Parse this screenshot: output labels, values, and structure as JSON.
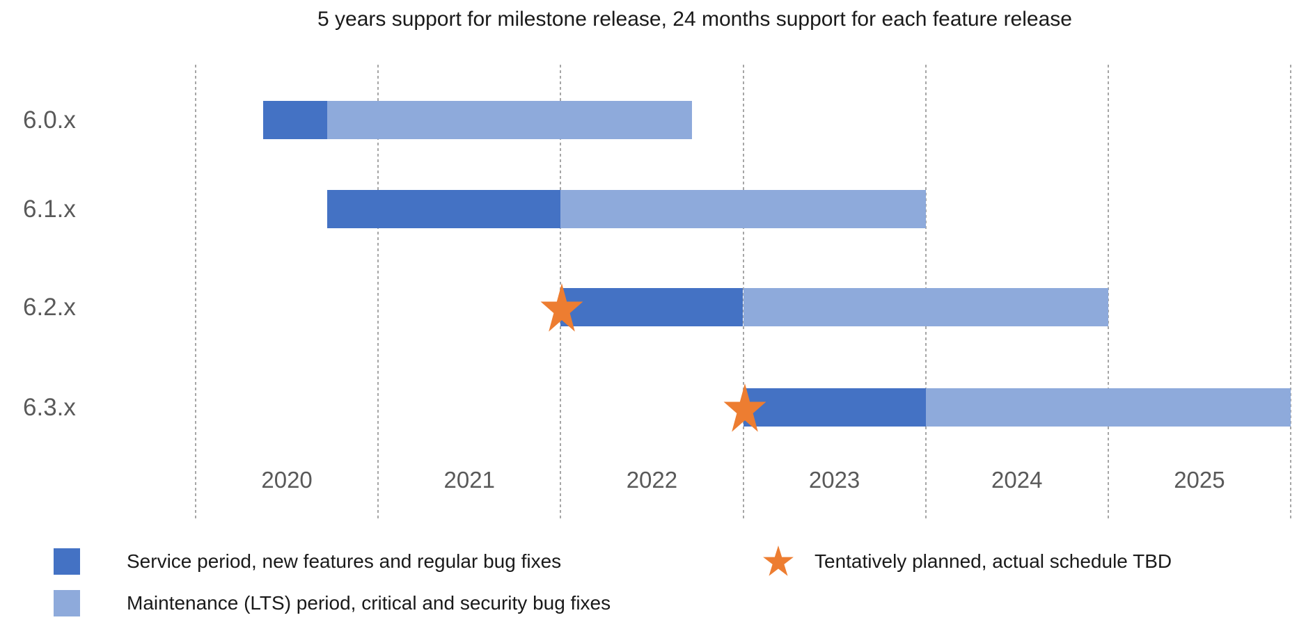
{
  "title": "5 years support for milestone release, 24 months support for each feature release",
  "colors": {
    "service": "#4472C4",
    "lts": "#8EAADB",
    "star": "#ED7D31",
    "gridline": "#A6A6A6",
    "axis_text": "#595959",
    "title_text": "#1A1A1A"
  },
  "chart_data": {
    "type": "gantt",
    "title": "5 years support for milestone release, 24 months support for each feature release",
    "x_axis": {
      "unit": "year",
      "start_year": 2020,
      "end_year": 2026,
      "tick_labels": [
        "2020",
        "2021",
        "2022",
        "2023",
        "2024",
        "2025"
      ],
      "gridlines": "dashed vertical line at each year boundary, 2020 through 2026"
    },
    "rows": [
      {
        "label": "6.0.x",
        "service_start": 2020.37,
        "lts_start": 2020.72,
        "lts_end": 2022.72,
        "tentative": false
      },
      {
        "label": "6.1.x",
        "service_start": 2020.72,
        "lts_start": 2022.0,
        "lts_end": 2024.0,
        "tentative": false
      },
      {
        "label": "6.2.x",
        "service_start": 2022.0,
        "lts_start": 2023.0,
        "lts_end": 2025.0,
        "tentative": true
      },
      {
        "label": "6.3.x",
        "service_start": 2023.0,
        "lts_start": 2024.0,
        "lts_end": 2026.0,
        "tentative": true
      }
    ],
    "legend_position": "bottom",
    "grid": "vertical dashed only"
  },
  "legend": {
    "service_label": "Service period, new features and regular bug fixes",
    "lts_label": "Maintenance (LTS) period, critical and security bug fixes",
    "tentative_label": "Tentatively planned, actual schedule TBD"
  }
}
